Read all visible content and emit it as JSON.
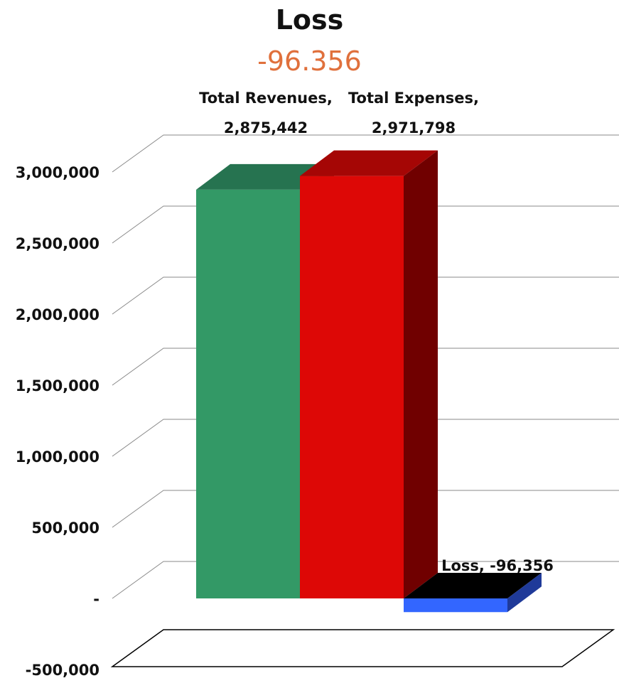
{
  "chart_data": {
    "type": "bar",
    "title": "Loss",
    "subtitle": "-96.356",
    "categories": [
      "Total Revenues",
      "Total Expenses",
      "Loss"
    ],
    "values": [
      2875442,
      2971798,
      -96356
    ],
    "data_labels": [
      [
        "Total Revenues,",
        "2,875,442"
      ],
      [
        "Total Expenses,",
        "2,971,798"
      ],
      [
        "Loss, -96,356"
      ]
    ],
    "ylim": [
      -500000,
      3000000
    ],
    "yticks": [
      {
        "value": 3000000,
        "label": "3,000,000"
      },
      {
        "value": 2500000,
        "label": "2,500,000"
      },
      {
        "value": 2000000,
        "label": "2,000,000"
      },
      {
        "value": 1500000,
        "label": "1,500,000"
      },
      {
        "value": 1000000,
        "label": "1,000,000"
      },
      {
        "value": 500000,
        "label": "500,000"
      },
      {
        "value": 0,
        "label": "-"
      },
      {
        "value": -500000,
        "label": "-500,000"
      }
    ],
    "grid": true,
    "colors": {
      "front": [
        "#339966",
        "#dd0806",
        "#3366ff"
      ],
      "top": [
        "#267350",
        "#a50605",
        "#000000"
      ],
      "side": [
        "#1a5236",
        "#700000",
        "#1f3a99"
      ]
    }
  }
}
